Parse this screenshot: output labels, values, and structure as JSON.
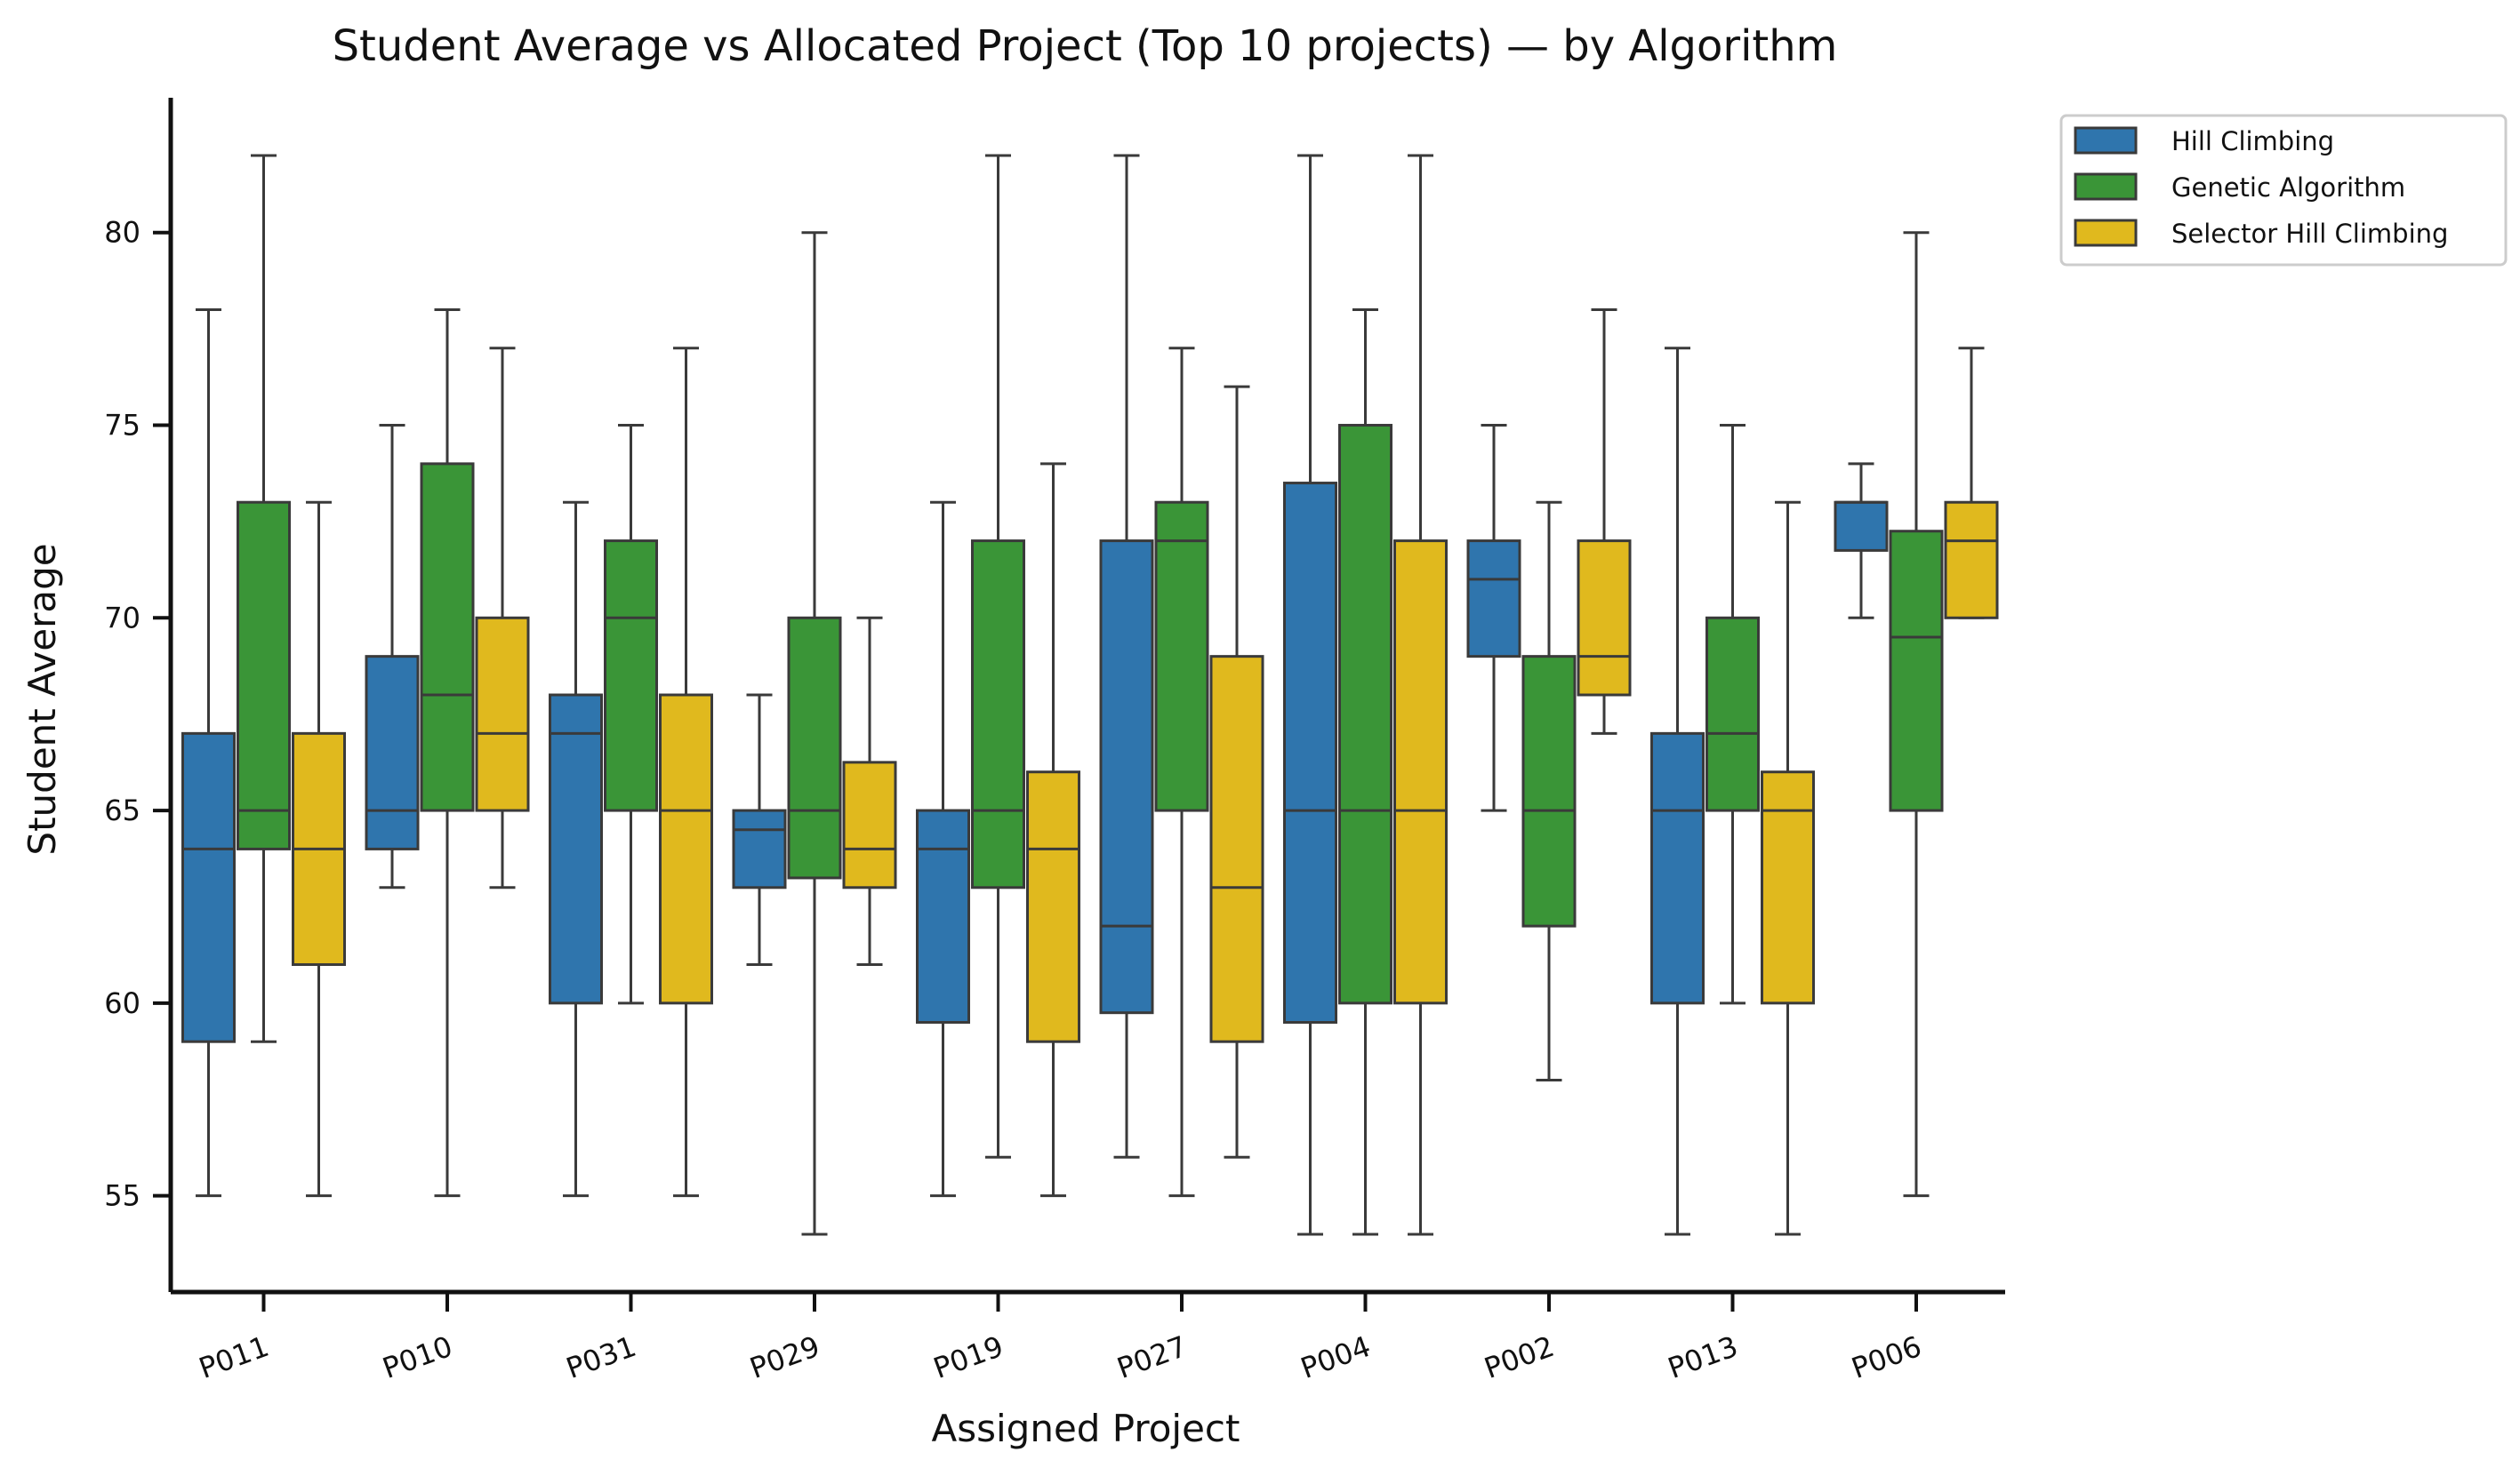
{
  "chart_data": {
    "type": "box",
    "title": "Student Average vs Allocated Project (Top 10 projects) — by Algorithm",
    "xlabel": "Assigned Project",
    "ylabel": "Student Average",
    "ylim": [
      52.5,
      83.5
    ],
    "yticks": [
      55,
      60,
      65,
      70,
      75,
      80
    ],
    "grid": false,
    "legend_position": "outside-top-right",
    "categories": [
      "P011",
      "P010",
      "P031",
      "P029",
      "P019",
      "P027",
      "P004",
      "P002",
      "P013",
      "P006"
    ],
    "series": [
      {
        "name": "Hill Climbing",
        "color": "#2f75ad",
        "boxes": [
          {
            "low": 55,
            "q1": 59,
            "median": 64,
            "q3": 67,
            "high": 78
          },
          {
            "low": 63,
            "q1": 64,
            "median": 65,
            "q3": 69,
            "high": 75
          },
          {
            "low": 55,
            "q1": 60,
            "median": 67,
            "q3": 68,
            "high": 73
          },
          {
            "low": 61,
            "q1": 63,
            "median": 64.5,
            "q3": 65,
            "high": 68
          },
          {
            "low": 55,
            "q1": 59.5,
            "median": 64,
            "q3": 65,
            "high": 73
          },
          {
            "low": 56,
            "q1": 59.75,
            "median": 62,
            "q3": 72,
            "high": 82
          },
          {
            "low": 54,
            "q1": 59.5,
            "median": 65,
            "q3": 73.5,
            "high": 82
          },
          {
            "low": 65,
            "q1": 69,
            "median": 71,
            "q3": 72,
            "high": 75
          },
          {
            "low": 54,
            "q1": 60,
            "median": 65,
            "q3": 67,
            "high": 77
          },
          {
            "low": 70,
            "q1": 71.75,
            "median": 73,
            "q3": 73,
            "high": 74
          }
        ]
      },
      {
        "name": "Genetic Algorithm",
        "color": "#3a9537",
        "boxes": [
          {
            "low": 59,
            "q1": 64,
            "median": 65,
            "q3": 73,
            "high": 82
          },
          {
            "low": 55,
            "q1": 65,
            "median": 68,
            "q3": 74,
            "high": 78
          },
          {
            "low": 60,
            "q1": 65,
            "median": 70,
            "q3": 72,
            "high": 75
          },
          {
            "low": 54,
            "q1": 63.25,
            "median": 65,
            "q3": 70,
            "high": 80
          },
          {
            "low": 56,
            "q1": 63,
            "median": 65,
            "q3": 72,
            "high": 82
          },
          {
            "low": 55,
            "q1": 65,
            "median": 72,
            "q3": 73,
            "high": 77
          },
          {
            "low": 54,
            "q1": 60,
            "median": 65,
            "q3": 75,
            "high": 78
          },
          {
            "low": 58,
            "q1": 62,
            "median": 65,
            "q3": 69,
            "high": 73
          },
          {
            "low": 60,
            "q1": 65,
            "median": 67,
            "q3": 70,
            "high": 75
          },
          {
            "low": 55,
            "q1": 65,
            "median": 69.5,
            "q3": 72.25,
            "high": 80
          }
        ]
      },
      {
        "name": "Selector Hill Climbing",
        "color": "#e0b91e",
        "boxes": [
          {
            "low": 55,
            "q1": 61,
            "median": 64,
            "q3": 67,
            "high": 73
          },
          {
            "low": 63,
            "q1": 65,
            "median": 67,
            "q3": 70,
            "high": 77
          },
          {
            "low": 55,
            "q1": 60,
            "median": 65,
            "q3": 68,
            "high": 77
          },
          {
            "low": 61,
            "q1": 63,
            "median": 64,
            "q3": 66.25,
            "high": 70
          },
          {
            "low": 55,
            "q1": 59,
            "median": 64,
            "q3": 66,
            "high": 74
          },
          {
            "low": 56,
            "q1": 59,
            "median": 63,
            "q3": 69,
            "high": 76
          },
          {
            "low": 54,
            "q1": 60,
            "median": 65,
            "q3": 72,
            "high": 82
          },
          {
            "low": 67,
            "q1": 68,
            "median": 69,
            "q3": 72,
            "high": 78
          },
          {
            "low": 54,
            "q1": 60,
            "median": 65,
            "q3": 66,
            "high": 73
          },
          {
            "low": 70,
            "q1": 70,
            "median": 72,
            "q3": 73,
            "high": 77
          }
        ]
      }
    ]
  }
}
